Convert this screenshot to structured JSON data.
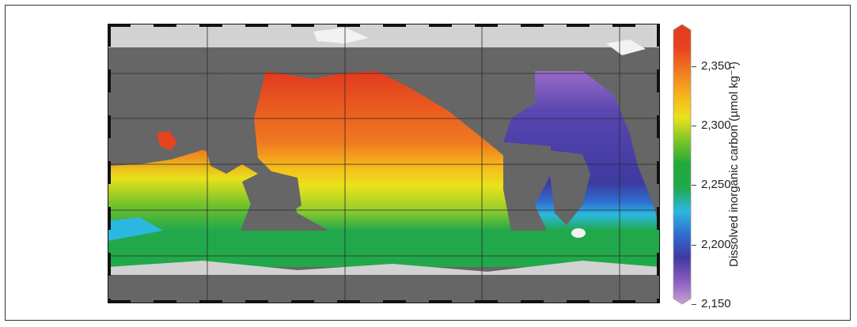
{
  "figure": {
    "colorbar": {
      "title": "Dissolved inorganic carbon (µmol kg⁻¹)",
      "ticks": [
        "2,350",
        "2,300",
        "2,250",
        "2,200",
        "2,150"
      ],
      "tick_values": [
        2350,
        2300,
        2250,
        2200,
        2150
      ],
      "range": [
        2150,
        2385
      ],
      "colors": [
        "#c9a3d6",
        "#8a5cbf",
        "#3e3aa0",
        "#2f6ecf",
        "#2bb8e0",
        "#21a84a",
        "#1faa3a",
        "#7cc42a",
        "#e9e21a",
        "#f6b21c",
        "#f07a20",
        "#e8421e",
        "#e23a1f"
      ]
    },
    "map_colors": {
      "land": "#666666",
      "ice": "#d2d2d2",
      "snow": "#f2f2f2",
      "grid": "#2a2a2a"
    }
  }
}
